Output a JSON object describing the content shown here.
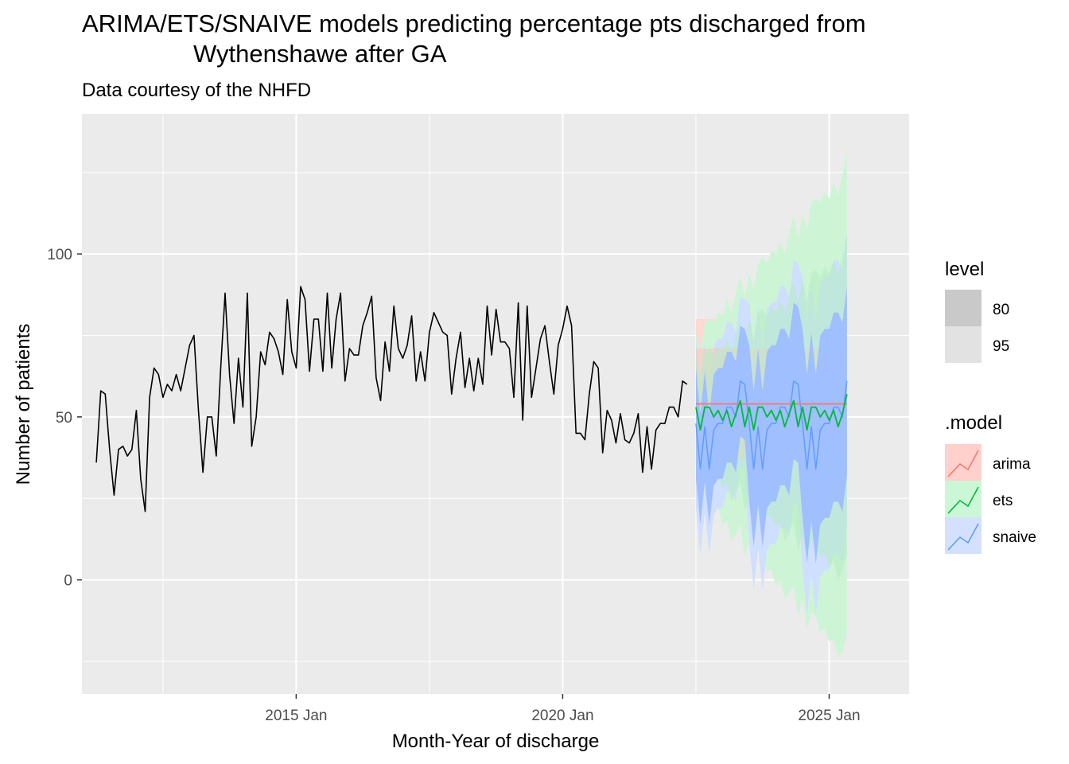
{
  "chart_data": {
    "type": "line",
    "title_line1": "ARIMA/ETS/SNAIVE models predicting percentage pts discharged from",
    "title_line2": "Wythenshawe after GA",
    "subtitle": "Data courtesy of the NHFD",
    "xlabel": "Month-Year of discharge",
    "ylabel": "Number of patients",
    "x_ticks": [
      "2015 Jan",
      "2020 Jan",
      "2025 Jan"
    ],
    "y_ticks": [
      "0",
      "50",
      "100"
    ],
    "xlim": [
      2010.98,
      2026.5
    ],
    "ylim": [
      -35,
      143
    ],
    "grid": true,
    "legend_level": {
      "title": "level",
      "items": [
        "80",
        "95"
      ]
    },
    "legend_model": {
      "title": ".model",
      "items": [
        {
          "name": "arima",
          "color": "#f8766d"
        },
        {
          "name": "ets",
          "color": "#00ba38"
        },
        {
          "name": "snaive",
          "color": "#619cff"
        }
      ]
    },
    "history": {
      "start": 2011.25,
      "step": 0.0833333,
      "values": [
        36,
        58,
        57,
        40,
        26,
        40,
        41,
        38,
        40,
        52,
        31,
        21,
        56,
        65,
        63,
        56,
        60,
        58,
        63,
        58,
        65,
        72,
        75,
        52,
        33,
        50,
        50,
        38,
        65,
        88,
        63,
        48,
        68,
        53,
        88,
        41,
        50,
        70,
        66,
        76,
        74,
        70,
        63,
        86,
        70,
        65,
        90,
        86,
        64,
        80,
        80,
        64,
        88,
        65,
        80,
        88,
        61,
        71,
        69,
        69,
        78,
        82,
        87,
        62,
        55,
        73,
        64,
        84,
        71,
        68,
        72,
        81,
        61,
        70,
        61,
        76,
        82,
        79,
        76,
        75,
        57,
        68,
        76,
        59,
        68,
        58,
        68,
        60,
        84,
        69,
        83,
        73,
        73,
        71,
        56,
        85,
        49,
        84,
        56,
        65,
        74,
        78,
        67,
        57,
        72,
        77,
        84,
        78,
        45,
        45,
        43,
        57,
        67,
        65,
        39,
        52,
        49,
        42,
        51,
        43,
        42,
        45,
        51,
        33,
        47,
        34,
        46,
        48,
        48,
        53,
        53,
        50,
        61,
        60
      ]
    },
    "forecast": {
      "start": 2022.5,
      "step": 0.0833333,
      "arima": {
        "mean": [
          54,
          54,
          54,
          54,
          54,
          54,
          54,
          54,
          54,
          54,
          54,
          54,
          54,
          54,
          54,
          54,
          54,
          54,
          54,
          54,
          54,
          54,
          54,
          54,
          54,
          54,
          54,
          54,
          54,
          54,
          54,
          54,
          54,
          54,
          54
        ],
        "lo80": [
          37,
          37,
          37,
          37,
          37,
          37,
          37,
          37,
          37,
          37,
          37,
          37,
          37,
          37,
          37,
          37,
          37,
          37,
          37,
          37,
          37,
          37,
          37,
          37,
          37,
          37,
          37,
          37,
          37,
          37,
          37,
          37,
          37,
          37,
          37
        ],
        "hi80": [
          71,
          71,
          71,
          71,
          71,
          71,
          71,
          71,
          71,
          71,
          71,
          71,
          71,
          71,
          71,
          71,
          71,
          71,
          71,
          71,
          71,
          71,
          71,
          71,
          71,
          71,
          71,
          71,
          71,
          71,
          71,
          71,
          71,
          71,
          71
        ],
        "lo95": [
          26,
          26,
          26,
          26,
          26,
          26,
          26,
          26,
          26,
          26,
          26,
          26,
          26,
          26,
          26,
          26,
          26,
          26,
          26,
          26,
          26,
          26,
          26,
          26,
          26,
          26,
          26,
          26,
          26,
          26,
          26,
          26,
          26,
          26,
          26
        ],
        "hi95": [
          80,
          80,
          80,
          80,
          80,
          80,
          80,
          80,
          80,
          80,
          80,
          80,
          80,
          80,
          80,
          80,
          80,
          80,
          80,
          80,
          80,
          80,
          80,
          80,
          80,
          80,
          80,
          80,
          80,
          80,
          80,
          80,
          80,
          80,
          80
        ]
      },
      "ets": {
        "mean": [
          53,
          46,
          53,
          53,
          50,
          52,
          49,
          52,
          47,
          51,
          55,
          47,
          53,
          46,
          53,
          53,
          50,
          52,
          49,
          52,
          47,
          51,
          55,
          47,
          53,
          46,
          53,
          53,
          50,
          52,
          49,
          52,
          47,
          51,
          57
        ],
        "lo80": [
          38,
          30,
          36,
          35,
          31,
          32,
          28,
          30,
          24,
          27,
          30,
          21,
          26,
          18,
          24,
          23,
          19,
          20,
          16,
          18,
          12,
          15,
          18,
          9,
          14,
          6,
          12,
          11,
          7,
          8,
          4,
          6,
          0,
          3,
          8
        ],
        "hi80": [
          68,
          62,
          70,
          71,
          69,
          72,
          70,
          74,
          70,
          75,
          80,
          73,
          80,
          74,
          82,
          83,
          81,
          84,
          82,
          86,
          82,
          87,
          92,
          85,
          92,
          86,
          94,
          95,
          93,
          96,
          94,
          98,
          94,
          99,
          106
        ],
        "lo95": [
          30,
          22,
          27,
          26,
          21,
          22,
          17,
          18,
          12,
          14,
          17,
          7,
          12,
          3,
          9,
          7,
          3,
          3,
          -2,
          0,
          -6,
          -4,
          -2,
          -11,
          -6,
          -15,
          -10,
          -11,
          -16,
          -15,
          -19,
          -18,
          -24,
          -22,
          -17
        ],
        "hi95": [
          76,
          70,
          79,
          80,
          79,
          82,
          81,
          86,
          82,
          88,
          93,
          87,
          94,
          89,
          97,
          99,
          97,
          101,
          100,
          104,
          100,
          106,
          112,
          105,
          112,
          107,
          116,
          117,
          116,
          119,
          117,
          122,
          118,
          124,
          131
        ]
      },
      "snaive": {
        "mean": [
          48,
          34,
          47,
          34,
          46,
          48,
          48,
          53,
          53,
          50,
          61,
          60,
          48,
          34,
          47,
          34,
          46,
          48,
          48,
          53,
          53,
          50,
          61,
          60,
          48,
          34,
          47,
          34,
          46,
          48,
          48,
          53,
          53,
          50,
          61
        ],
        "lo80": [
          31,
          17,
          30,
          17,
          29,
          31,
          31,
          36,
          36,
          33,
          44,
          43,
          24,
          10,
          23,
          10,
          22,
          24,
          24,
          29,
          29,
          26,
          37,
          36,
          19,
          5,
          18,
          5,
          17,
          19,
          19,
          24,
          24,
          21,
          32
        ],
        "hi80": [
          65,
          51,
          64,
          51,
          63,
          65,
          65,
          70,
          70,
          67,
          78,
          77,
          72,
          58,
          71,
          58,
          70,
          72,
          72,
          77,
          77,
          74,
          85,
          84,
          77,
          63,
          76,
          63,
          75,
          77,
          77,
          82,
          82,
          79,
          90
        ],
        "lo95": [
          22,
          8,
          21,
          8,
          20,
          22,
          22,
          27,
          27,
          24,
          35,
          34,
          11,
          -3,
          10,
          -3,
          9,
          11,
          11,
          16,
          16,
          13,
          24,
          23,
          3,
          -11,
          2,
          -11,
          1,
          3,
          3,
          8,
          8,
          5,
          16
        ],
        "hi95": [
          74,
          60,
          73,
          60,
          72,
          74,
          74,
          79,
          79,
          76,
          87,
          86,
          85,
          71,
          84,
          71,
          83,
          85,
          85,
          90,
          90,
          87,
          98,
          97,
          93,
          79,
          92,
          79,
          91,
          93,
          93,
          98,
          98,
          95,
          106
        ]
      }
    }
  }
}
